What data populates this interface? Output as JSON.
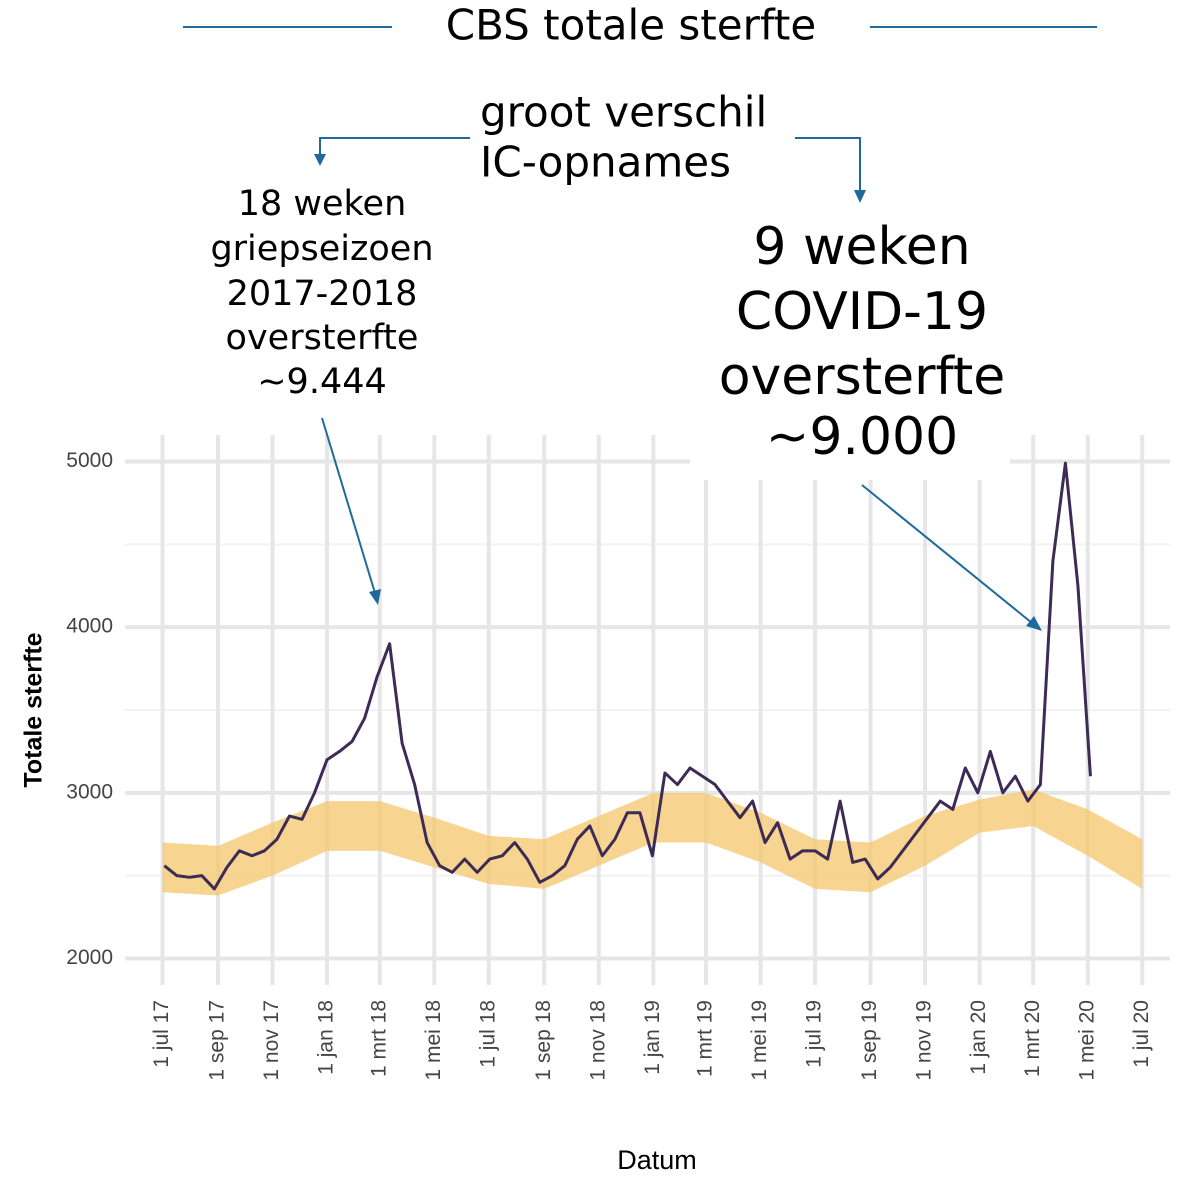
{
  "chart_data": {
    "type": "line",
    "title": "CBS totale sterfte",
    "x_label": "Datum",
    "y_label": "Totale sterfte",
    "annotations": {
      "top": [
        "groot verschil",
        "IC-opnames"
      ],
      "left": [
        "18 weken",
        "griepseizoen",
        "2017-2018",
        "oversterfte",
        "~9.444"
      ],
      "right": [
        "9 weken",
        "COVID-19",
        "oversterfte",
        "~9.000"
      ]
    },
    "xlim": [
      "2017-05-20",
      "2020-08-01"
    ],
    "ylim": [
      1840,
      5160
    ],
    "yticks": [
      2000,
      3000,
      4000,
      5000
    ],
    "yticks_minor": [
      2500,
      3500,
      4500
    ],
    "xticks": [
      {
        "value": "2017-07-01",
        "label": "1 jul 17"
      },
      {
        "value": "2017-09-01",
        "label": "1 sep 17"
      },
      {
        "value": "2017-11-01",
        "label": "1 nov 17"
      },
      {
        "value": "2018-01-01",
        "label": "1 jan 18"
      },
      {
        "value": "2018-03-01",
        "label": "1 mrt 18"
      },
      {
        "value": "2018-05-01",
        "label": "1 mei 18"
      },
      {
        "value": "2018-07-01",
        "label": "1 jul 18"
      },
      {
        "value": "2018-09-01",
        "label": "1 sep 18"
      },
      {
        "value": "2018-11-01",
        "label": "1 nov 18"
      },
      {
        "value": "2019-01-01",
        "label": "1 jan 19"
      },
      {
        "value": "2019-03-01",
        "label": "1 mrt 19"
      },
      {
        "value": "2019-05-01",
        "label": "1 mei 19"
      },
      {
        "value": "2019-07-01",
        "label": "1 jul 19"
      },
      {
        "value": "2019-09-01",
        "label": "1 sep 19"
      },
      {
        "value": "2019-11-01",
        "label": "1 nov 19"
      },
      {
        "value": "2020-01-01",
        "label": "1 jan 20"
      },
      {
        "value": "2020-03-01",
        "label": "1 mrt 20"
      },
      {
        "value": "2020-05-01",
        "label": "1 mei 20"
      },
      {
        "value": "2020-07-01",
        "label": "1 jul 20"
      }
    ],
    "grid": true,
    "band": {
      "color": "#f6c56c",
      "x": [
        "2017-07-01",
        "2017-09-01",
        "2017-11-01",
        "2018-01-01",
        "2018-03-01",
        "2018-05-01",
        "2018-07-01",
        "2018-09-01",
        "2018-11-01",
        "2019-01-01",
        "2019-03-01",
        "2019-05-01",
        "2019-07-01",
        "2019-09-01",
        "2019-11-01",
        "2020-01-01",
        "2020-03-01",
        "2020-05-01",
        "2020-07-01"
      ],
      "lower": [
        2400,
        2380,
        2500,
        2650,
        2650,
        2550,
        2450,
        2420,
        2560,
        2700,
        2700,
        2580,
        2420,
        2400,
        2560,
        2760,
        2800,
        2620,
        2420
      ],
      "upper": [
        2700,
        2680,
        2820,
        2950,
        2950,
        2850,
        2740,
        2720,
        2860,
        3000,
        3000,
        2880,
        2720,
        2700,
        2860,
        2960,
        3020,
        2900,
        2720
      ]
    },
    "x": [
      "2017-07-03",
      "2017-07-17",
      "2017-07-31",
      "2017-08-14",
      "2017-08-28",
      "2017-09-11",
      "2017-09-25",
      "2017-10-09",
      "2017-10-23",
      "2017-11-06",
      "2017-11-20",
      "2017-12-04",
      "2017-12-18",
      "2018-01-01",
      "2018-01-15",
      "2018-01-29",
      "2018-02-12",
      "2018-02-26",
      "2018-03-12",
      "2018-03-26",
      "2018-04-09",
      "2018-04-23",
      "2018-05-07",
      "2018-05-21",
      "2018-06-04",
      "2018-06-18",
      "2018-07-02",
      "2018-07-16",
      "2018-07-30",
      "2018-08-13",
      "2018-08-27",
      "2018-09-10",
      "2018-09-24",
      "2018-10-08",
      "2018-10-22",
      "2018-11-05",
      "2018-11-19",
      "2018-12-03",
      "2018-12-17",
      "2018-12-31",
      "2019-01-14",
      "2019-01-28",
      "2019-02-11",
      "2019-02-25",
      "2019-03-11",
      "2019-03-25",
      "2019-04-08",
      "2019-04-22",
      "2019-05-06",
      "2019-05-20",
      "2019-06-03",
      "2019-06-17",
      "2019-07-01",
      "2019-07-15",
      "2019-07-29",
      "2019-08-12",
      "2019-08-26",
      "2019-09-09",
      "2019-09-23",
      "2019-10-07",
      "2019-10-21",
      "2019-11-04",
      "2019-11-18",
      "2019-12-02",
      "2019-12-16",
      "2019-12-30",
      "2020-01-13",
      "2020-01-27",
      "2020-02-10",
      "2020-02-24",
      "2020-03-09",
      "2020-03-23",
      "2020-04-06",
      "2020-04-20",
      "2020-05-04"
    ],
    "series": [
      {
        "color": "#3d2b56",
        "values": [
          2560,
          2500,
          2490,
          2500,
          2420,
          2550,
          2650,
          2620,
          2650,
          2720,
          2860,
          2840,
          3000,
          3200,
          3250,
          3310,
          3450,
          3700,
          3900,
          3300,
          3050,
          2700,
          2560,
          2520,
          2600,
          2520,
          2600,
          2620,
          2700,
          2600,
          2460,
          2500,
          2560,
          2720,
          2800,
          2620,
          2720,
          2880,
          2880,
          2620,
          3120,
          3050,
          3150,
          3100,
          3050,
          2950,
          2850,
          2950,
          2700,
          2820,
          2600,
          2650,
          2650,
          2600,
          2950,
          2580,
          2600,
          2480,
          2550,
          2650,
          2750,
          2850,
          2950,
          2900,
          3150,
          3000,
          3250,
          3000,
          3100,
          2950,
          3050,
          4400,
          4990,
          4250,
          3100
        ]
      }
    ]
  }
}
